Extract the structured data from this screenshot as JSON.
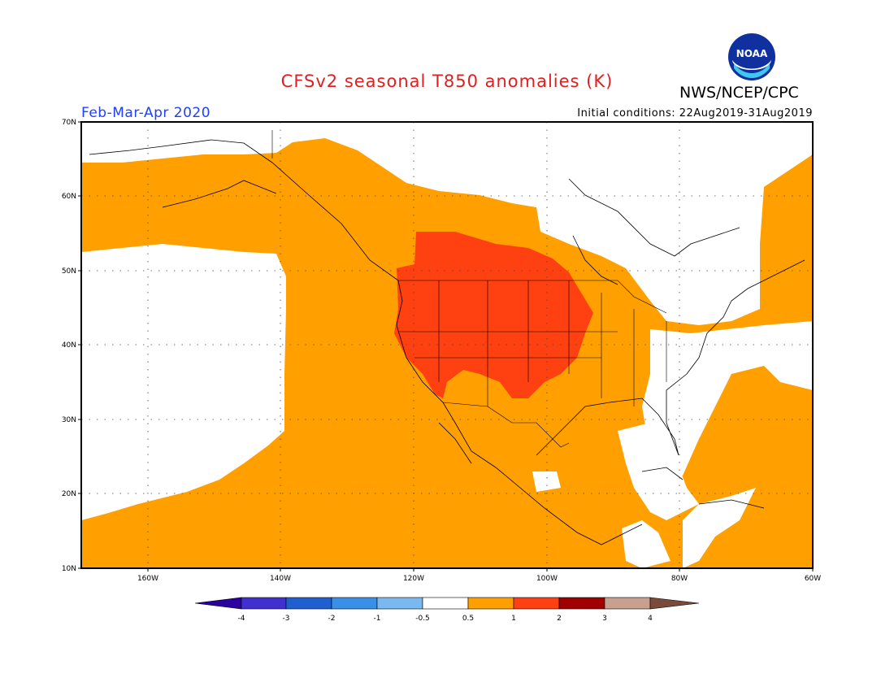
{
  "title": "CFSv2 seasonal T850 anomalies (K)",
  "agency": "NWS/NCEP/CPC",
  "season": "Feb-Mar-Apr 2020",
  "initial_conditions": "Initial conditions: 22Aug2019-31Aug2019",
  "colors": {
    "title": "#e02020",
    "season": "#2040ff",
    "anom_0_5_to_1": "#ffa000",
    "anom_1_to_2": "#ff4010",
    "neutral": "#ffffff"
  },
  "logo_text": "NOAA",
  "map": {
    "lat_range": [
      10,
      70
    ],
    "lon_range": [
      -170,
      -60
    ],
    "lat_labels": [
      "10N",
      "20N",
      "30N",
      "40N",
      "50N",
      "60N",
      "70N"
    ],
    "lon_labels": [
      "160W",
      "140W",
      "120W",
      "100W",
      "80W",
      "60W"
    ],
    "grid": "dotted"
  },
  "colorbar": {
    "labels": [
      "-4",
      "-3",
      "-2",
      "-1",
      "-0.5",
      "0.5",
      "1",
      "2",
      "3",
      "4"
    ],
    "colors": [
      "#2a00a0",
      "#4030d0",
      "#1f5fd0",
      "#3a8fe8",
      "#7ab8f0",
      "#ffffff",
      "#ffa000",
      "#ff4010",
      "#a00000",
      "#c8a090",
      "#7a4a3a"
    ]
  }
}
